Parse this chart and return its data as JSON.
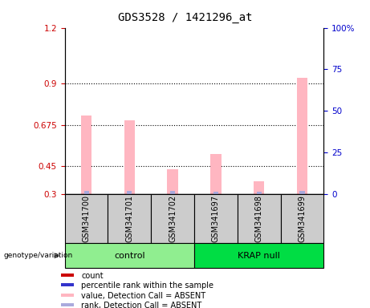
{
  "title": "GDS3528 / 1421296_at",
  "samples": [
    "GSM341700",
    "GSM341701",
    "GSM341702",
    "GSM341697",
    "GSM341698",
    "GSM341699"
  ],
  "pink_bar_values": [
    0.725,
    0.7,
    0.435,
    0.515,
    0.37,
    0.93
  ],
  "blue_bar_values": [
    0.316,
    0.316,
    0.316,
    0.312,
    0.312,
    0.316
  ],
  "ylim_left": [
    0.3,
    1.2
  ],
  "ylim_right": [
    0,
    100
  ],
  "yticks_left": [
    0.3,
    0.45,
    0.675,
    0.9,
    1.2
  ],
  "ytick_labels_left": [
    "0.3",
    "0.45",
    "0.675",
    "0.9",
    "1.2"
  ],
  "yticks_right": [
    0,
    25,
    50,
    75,
    100
  ],
  "ytick_labels_right": [
    "0",
    "25",
    "50",
    "75",
    "100%"
  ],
  "hlines": [
    0.9,
    0.675,
    0.45
  ],
  "bar_width": 0.25,
  "pink_color": "#FFB6C1",
  "blue_color": "#AAAADD",
  "red_sq": "#CC0000",
  "blue_sq": "#3333CC",
  "legend_items": [
    {
      "color": "#CC0000",
      "label": "count"
    },
    {
      "color": "#3333CC",
      "label": "percentile rank within the sample"
    },
    {
      "color": "#FFB6C1",
      "label": "value, Detection Call = ABSENT"
    },
    {
      "color": "#AAAADD",
      "label": "rank, Detection Call = ABSENT"
    }
  ],
  "bg_color": "#FFFFFF",
  "tick_color_left": "#CC0000",
  "tick_color_right": "#0000CC",
  "sample_box_color": "#CCCCCC",
  "ctrl_color": "#90EE90",
  "krap_color": "#00DD44"
}
